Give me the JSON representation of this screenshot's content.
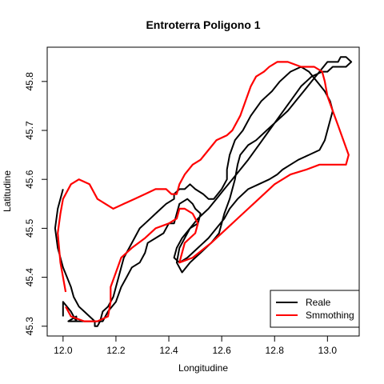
{
  "chart_data": {
    "type": "line",
    "title": "Entroterra Poligono 1",
    "xlabel": "Longitudine",
    "ylabel": "Latitudine",
    "xlim": [
      11.94,
      13.12
    ],
    "ylim": [
      45.28,
      45.87
    ],
    "x_ticks": [
      12.0,
      12.2,
      12.4,
      12.6,
      12.8,
      13.0
    ],
    "x_tick_labels": [
      "12.0",
      "12.2",
      "12.4",
      "12.6",
      "12.8",
      "13.0"
    ],
    "y_ticks": [
      45.3,
      45.4,
      45.5,
      45.6,
      45.7,
      45.8
    ],
    "y_tick_labels": [
      "45.3",
      "45.4",
      "45.5",
      "45.6",
      "45.7",
      "45.8"
    ],
    "grid": false,
    "legend_position": "bottom-right",
    "series": [
      {
        "name": "Reale",
        "color": "#000000",
        "x": [
          12.0,
          12.0,
          12.03,
          12.05,
          12.05,
          12.02,
          12.04,
          12.06,
          12.09,
          12.12,
          12.15,
          12.17,
          12.2,
          12.22,
          12.24,
          12.26,
          12.29,
          12.31,
          12.32,
          12.35,
          12.38,
          12.39,
          12.4,
          12.42,
          12.43,
          12.44,
          12.47,
          12.49,
          12.5,
          12.52,
          12.51,
          12.48,
          12.46,
          12.44,
          12.43,
          12.45,
          12.48,
          12.52,
          12.56,
          12.59,
          12.6,
          12.61,
          12.63,
          12.65,
          12.66,
          12.67,
          12.7,
          12.73,
          12.77,
          12.81,
          12.85,
          12.88,
          12.91,
          12.94,
          12.97,
          13.0,
          13.02,
          13.04,
          13.05,
          13.07,
          13.09,
          13.07,
          13.05,
          13.02,
          13.0,
          12.98,
          12.94,
          12.9,
          12.86,
          12.82,
          12.78,
          12.74,
          12.7,
          12.67,
          12.64,
          12.61,
          12.58,
          12.55,
          12.51,
          12.48,
          12.45,
          12.43,
          12.42,
          12.44,
          12.47,
          12.51,
          12.55,
          12.58,
          12.61,
          12.63,
          12.66,
          12.7,
          12.74,
          12.78,
          12.81,
          12.83,
          12.86,
          12.89,
          12.93,
          12.97,
          12.99,
          13.0,
          13.01,
          13.02,
          13.01,
          12.99,
          12.96,
          12.93,
          12.9,
          12.86,
          12.82,
          12.79,
          12.75,
          12.71,
          12.68,
          12.65,
          12.63,
          12.62,
          12.62,
          12.6,
          12.57,
          12.55,
          12.53,
          12.5,
          12.48,
          12.46,
          12.44,
          12.42,
          12.42,
          12.39,
          12.37,
          12.35,
          12.33,
          12.31,
          12.29,
          12.27,
          12.25,
          12.23,
          12.22,
          12.21,
          12.2,
          12.19,
          12.17,
          12.15,
          12.14,
          12.13,
          12.12,
          12.12,
          12.1,
          12.08,
          12.06,
          12.04,
          12.03,
          12.0,
          11.98,
          11.97,
          11.98,
          12.0
        ],
        "y": [
          45.32,
          45.35,
          45.33,
          45.31,
          45.32,
          45.31,
          45.31,
          45.31,
          45.31,
          45.31,
          45.31,
          45.33,
          45.35,
          45.38,
          45.4,
          45.42,
          45.43,
          45.45,
          45.47,
          45.48,
          45.49,
          45.5,
          45.51,
          45.51,
          45.53,
          45.55,
          45.56,
          45.55,
          45.54,
          45.53,
          45.51,
          45.5,
          45.48,
          45.46,
          45.43,
          45.41,
          45.43,
          45.45,
          45.47,
          45.49,
          45.51,
          45.53,
          45.56,
          45.6,
          45.63,
          45.65,
          45.67,
          45.68,
          45.7,
          45.72,
          45.74,
          45.76,
          45.78,
          45.8,
          45.82,
          45.84,
          45.84,
          45.84,
          45.85,
          45.85,
          45.84,
          45.83,
          45.83,
          45.83,
          45.82,
          45.82,
          45.81,
          45.79,
          45.76,
          45.73,
          45.7,
          45.67,
          45.64,
          45.62,
          45.6,
          45.58,
          45.56,
          45.54,
          45.52,
          45.5,
          45.48,
          45.46,
          45.44,
          45.43,
          45.44,
          45.46,
          45.48,
          45.5,
          45.52,
          45.54,
          45.56,
          45.58,
          45.59,
          45.6,
          45.61,
          45.62,
          45.63,
          45.64,
          45.65,
          45.66,
          45.68,
          45.7,
          45.72,
          45.74,
          45.76,
          45.78,
          45.8,
          45.82,
          45.83,
          45.82,
          45.8,
          45.78,
          45.76,
          45.73,
          45.7,
          45.68,
          45.65,
          45.62,
          45.6,
          45.58,
          45.56,
          45.56,
          45.57,
          45.58,
          45.59,
          45.58,
          45.58,
          45.57,
          45.56,
          45.55,
          45.54,
          45.53,
          45.52,
          45.51,
          45.5,
          45.48,
          45.46,
          45.44,
          45.42,
          45.4,
          45.38,
          45.36,
          45.34,
          45.33,
          45.31,
          45.3,
          45.3,
          45.31,
          45.32,
          45.33,
          45.34,
          45.36,
          45.38,
          45.42,
          45.46,
          45.5,
          45.54,
          45.58
        ],
        "note_points": "outline traced approximately"
      },
      {
        "name": "Smmothing",
        "color": "#ff0000",
        "x": [
          12.01,
          12.03,
          12.08,
          12.13,
          12.17,
          12.18,
          12.18,
          12.2,
          12.22,
          12.26,
          12.31,
          12.35,
          12.4,
          12.43,
          12.44,
          12.46,
          12.49,
          12.51,
          12.5,
          12.46,
          12.44,
          12.49,
          12.56,
          12.62,
          12.68,
          12.74,
          12.8,
          12.86,
          12.92,
          12.97,
          13.0,
          13.03,
          13.07,
          13.08,
          13.06,
          13.04,
          13.02,
          13.0,
          12.99,
          12.98,
          12.95,
          12.9,
          12.85,
          12.81,
          12.78,
          12.76,
          12.73,
          12.71,
          12.69,
          12.67,
          12.64,
          12.62,
          12.58,
          12.55,
          12.52,
          12.49,
          12.46,
          12.44,
          12.43,
          12.41,
          12.39,
          12.37,
          12.35,
          12.31,
          12.27,
          12.23,
          12.19,
          12.16,
          12.13,
          12.1,
          12.06,
          12.03,
          12.0,
          11.99,
          11.98,
          11.99,
          12.01
        ],
        "y": [
          45.34,
          45.32,
          45.31,
          45.31,
          45.32,
          45.35,
          45.38,
          45.41,
          45.44,
          45.46,
          45.48,
          45.5,
          45.51,
          45.52,
          45.54,
          45.54,
          45.53,
          45.51,
          45.49,
          45.47,
          45.43,
          45.44,
          45.47,
          45.5,
          45.53,
          45.56,
          45.59,
          45.61,
          45.62,
          45.63,
          45.63,
          45.63,
          45.63,
          45.65,
          45.68,
          45.71,
          45.74,
          45.77,
          45.8,
          45.82,
          45.83,
          45.83,
          45.84,
          45.84,
          45.83,
          45.82,
          45.81,
          45.79,
          45.76,
          45.73,
          45.7,
          45.69,
          45.68,
          45.66,
          45.64,
          45.63,
          45.61,
          45.59,
          45.57,
          45.57,
          45.58,
          45.58,
          45.58,
          45.57,
          45.56,
          45.55,
          45.54,
          45.55,
          45.56,
          45.59,
          45.6,
          45.59,
          45.56,
          45.53,
          45.49,
          45.43,
          45.37
        ]
      }
    ]
  }
}
